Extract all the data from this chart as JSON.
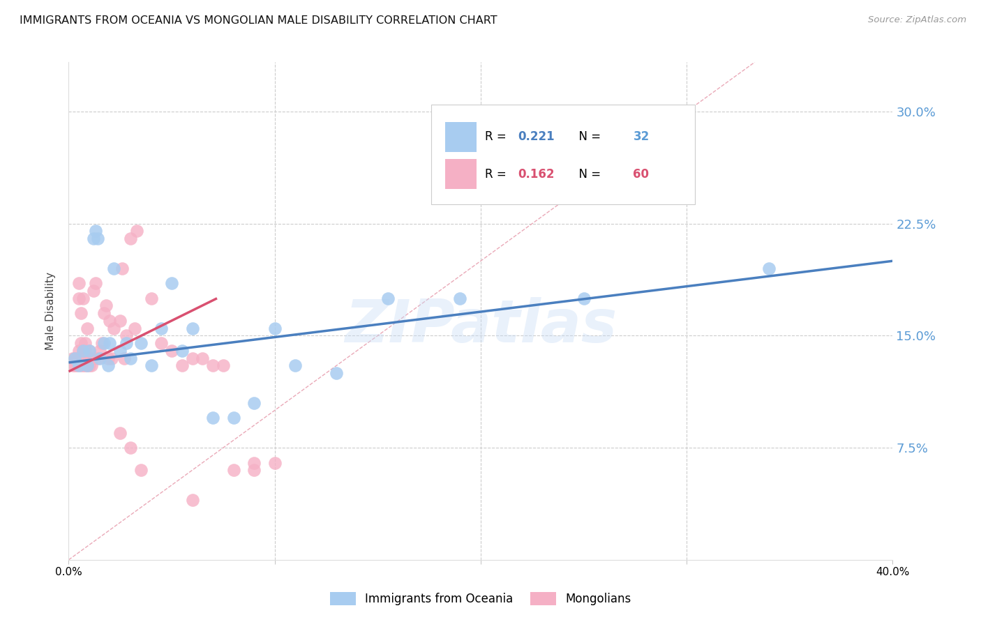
{
  "title": "IMMIGRANTS FROM OCEANIA VS MONGOLIAN MALE DISABILITY CORRELATION CHART",
  "source": "Source: ZipAtlas.com",
  "ylabel": "Male Disability",
  "xmin": 0.0,
  "xmax": 0.4,
  "ymin": 0.0,
  "ymax": 0.333,
  "yticks": [
    0.0,
    0.075,
    0.15,
    0.225,
    0.3
  ],
  "ytick_labels": [
    "",
    "7.5%",
    "15.0%",
    "22.5%",
    "30.0%"
  ],
  "xticks": [
    0.0,
    0.1,
    0.2,
    0.3,
    0.4
  ],
  "xtick_labels": [
    "0.0%",
    "",
    "",
    "",
    "40.0%"
  ],
  "watermark": "ZIPatlas",
  "legend1_label": "Immigrants from Oceania",
  "legend2_label": "Mongolians",
  "r1": "0.221",
  "n1": "32",
  "r2": "0.162",
  "n2": "60",
  "color_blue": "#A8CCF0",
  "color_pink": "#F5B0C5",
  "color_blue_line": "#4A7FBF",
  "color_pink_line": "#D95070",
  "color_right_axis": "#5B9BD5",
  "color_pink_n": "#D95070",
  "color_diag": "#E8A0B0",
  "blue_scatter_x": [
    0.003,
    0.005,
    0.007,
    0.009,
    0.01,
    0.012,
    0.013,
    0.014,
    0.015,
    0.017,
    0.019,
    0.02,
    0.022,
    0.025,
    0.028,
    0.03,
    0.035,
    0.04,
    0.045,
    0.05,
    0.055,
    0.06,
    0.07,
    0.08,
    0.09,
    0.1,
    0.11,
    0.13,
    0.155,
    0.19,
    0.25,
    0.34
  ],
  "blue_scatter_y": [
    0.135,
    0.13,
    0.14,
    0.13,
    0.14,
    0.215,
    0.22,
    0.215,
    0.135,
    0.145,
    0.13,
    0.145,
    0.195,
    0.14,
    0.145,
    0.135,
    0.145,
    0.13,
    0.155,
    0.185,
    0.14,
    0.155,
    0.095,
    0.095,
    0.105,
    0.155,
    0.13,
    0.125,
    0.175,
    0.175,
    0.175,
    0.195
  ],
  "pink_scatter_x": [
    0.002,
    0.002,
    0.003,
    0.003,
    0.004,
    0.004,
    0.005,
    0.005,
    0.005,
    0.006,
    0.006,
    0.006,
    0.007,
    0.007,
    0.007,
    0.008,
    0.008,
    0.008,
    0.009,
    0.009,
    0.009,
    0.01,
    0.01,
    0.01,
    0.011,
    0.011,
    0.012,
    0.013,
    0.014,
    0.015,
    0.016,
    0.017,
    0.018,
    0.019,
    0.02,
    0.021,
    0.022,
    0.025,
    0.026,
    0.027,
    0.028,
    0.03,
    0.032,
    0.033,
    0.035,
    0.04,
    0.045,
    0.05,
    0.055,
    0.06,
    0.065,
    0.07,
    0.075,
    0.08,
    0.09,
    0.1,
    0.025,
    0.03,
    0.06,
    0.09
  ],
  "pink_scatter_y": [
    0.13,
    0.135,
    0.13,
    0.135,
    0.13,
    0.135,
    0.14,
    0.175,
    0.185,
    0.13,
    0.145,
    0.165,
    0.13,
    0.14,
    0.175,
    0.13,
    0.14,
    0.145,
    0.13,
    0.135,
    0.155,
    0.13,
    0.135,
    0.14,
    0.13,
    0.135,
    0.18,
    0.185,
    0.135,
    0.14,
    0.145,
    0.165,
    0.17,
    0.135,
    0.16,
    0.135,
    0.155,
    0.16,
    0.195,
    0.135,
    0.15,
    0.215,
    0.155,
    0.22,
    0.06,
    0.175,
    0.145,
    0.14,
    0.13,
    0.135,
    0.135,
    0.13,
    0.13,
    0.06,
    0.06,
    0.065,
    0.085,
    0.075,
    0.04,
    0.065
  ],
  "blue_trend_x": [
    0.0,
    0.4
  ],
  "blue_trend_y": [
    0.132,
    0.2
  ],
  "pink_trend_x": [
    0.0,
    0.072
  ],
  "pink_trend_y": [
    0.126,
    0.175
  ]
}
